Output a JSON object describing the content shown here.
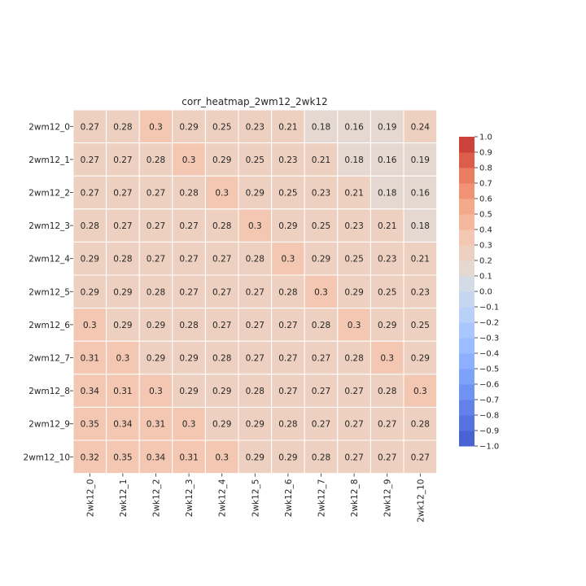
{
  "chart_data": {
    "type": "heatmap",
    "title": "corr_heatmap_2wm12_2wk12",
    "rows": [
      "2wm12_0",
      "2wm12_1",
      "2wm12_2",
      "2wm12_3",
      "2wm12_4",
      "2wm12_5",
      "2wm12_6",
      "2wm12_7",
      "2wm12_8",
      "2wm12_9",
      "2wm12_10"
    ],
    "columns": [
      "2wk12_0",
      "2wk12_1",
      "2wk12_2",
      "2wk12_3",
      "2wk12_4",
      "2wk12_5",
      "2wk12_6",
      "2wk12_7",
      "2wk12_8",
      "2wk12_9",
      "2wk12_10"
    ],
    "values": [
      [
        0.27,
        0.28,
        0.3,
        0.29,
        0.25,
        0.23,
        0.21,
        0.18,
        0.16,
        0.19,
        0.24
      ],
      [
        0.27,
        0.27,
        0.28,
        0.3,
        0.29,
        0.25,
        0.23,
        0.21,
        0.18,
        0.16,
        0.19
      ],
      [
        0.27,
        0.27,
        0.27,
        0.28,
        0.3,
        0.29,
        0.25,
        0.23,
        0.21,
        0.18,
        0.16
      ],
      [
        0.28,
        0.27,
        0.27,
        0.27,
        0.28,
        0.3,
        0.29,
        0.25,
        0.23,
        0.21,
        0.18
      ],
      [
        0.29,
        0.28,
        0.27,
        0.27,
        0.27,
        0.28,
        0.3,
        0.29,
        0.25,
        0.23,
        0.21
      ],
      [
        0.29,
        0.29,
        0.28,
        0.27,
        0.27,
        0.27,
        0.28,
        0.3,
        0.29,
        0.25,
        0.23
      ],
      [
        0.3,
        0.29,
        0.29,
        0.28,
        0.27,
        0.27,
        0.27,
        0.28,
        0.3,
        0.29,
        0.25
      ],
      [
        0.31,
        0.3,
        0.29,
        0.29,
        0.28,
        0.27,
        0.27,
        0.27,
        0.28,
        0.3,
        0.29
      ],
      [
        0.34,
        0.31,
        0.3,
        0.29,
        0.29,
        0.28,
        0.27,
        0.27,
        0.27,
        0.28,
        0.3
      ],
      [
        0.35,
        0.34,
        0.31,
        0.3,
        0.29,
        0.29,
        0.28,
        0.27,
        0.27,
        0.27,
        0.28
      ],
      [
        0.32,
        0.35,
        0.34,
        0.31,
        0.3,
        0.29,
        0.29,
        0.28,
        0.27,
        0.27,
        0.27
      ]
    ],
    "colorbar": {
      "range": [
        -1.0,
        1.0
      ],
      "bins": 20,
      "colormap": "coolwarm",
      "colors": [
        "#4a63d3",
        "#5673e0",
        "#6282ea",
        "#7092f3",
        "#7ea1fa",
        "#8db0fe",
        "#9bbcff",
        "#aac7fd",
        "#b9d0f9",
        "#c6d6f1",
        "#d3dbe7",
        "#e5d8d1",
        "#eed0c0",
        "#f3c7b1",
        "#f5b89d",
        "#f5a98b",
        "#f29274",
        "#eb7d62",
        "#dc5d4a",
        "#cd423b"
      ],
      "ticks": [
        "1.0",
        "0.9",
        "0.8",
        "0.7",
        "0.6",
        "0.5",
        "0.4",
        "0.3",
        "0.2",
        "0.1",
        "0.0",
        "−0.1",
        "−0.2",
        "−0.3",
        "−0.4",
        "−0.5",
        "−0.6",
        "−0.7",
        "−0.8",
        "−0.9",
        "−1.0"
      ]
    },
    "cell_border_color": "#ffffff",
    "legend": "right"
  }
}
